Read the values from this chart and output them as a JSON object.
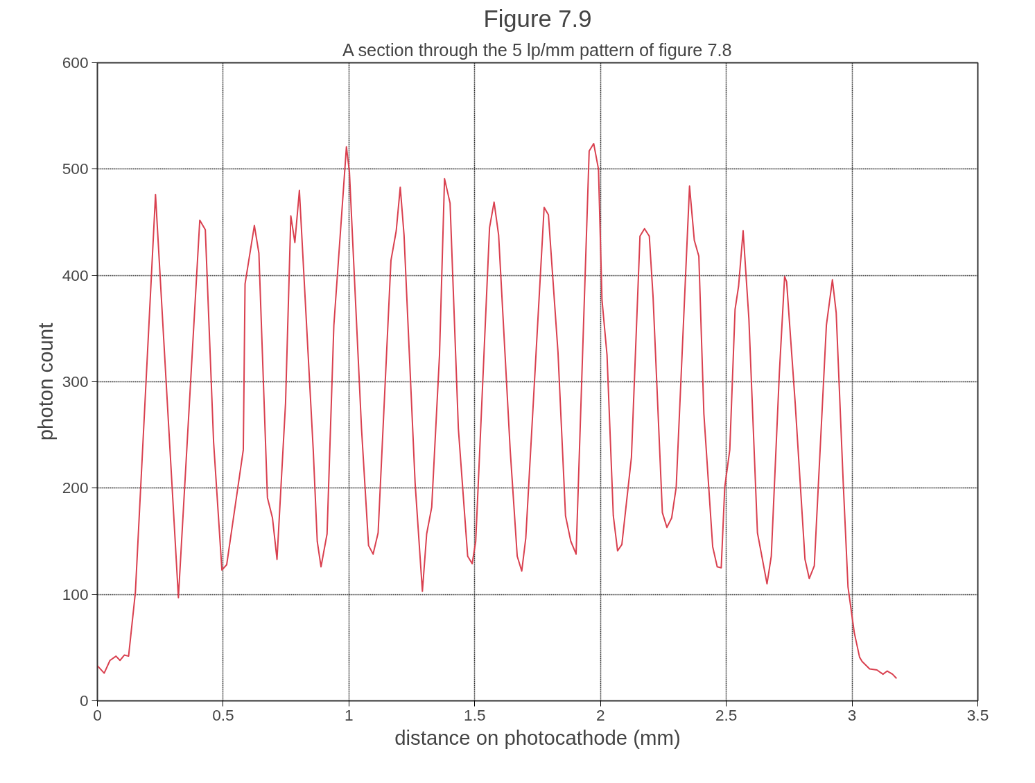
{
  "chart_data": {
    "type": "line",
    "title": "Figure 7.9",
    "subtitle": "A section through the 5 lp/mm pattern of figure 7.8",
    "xlabel": "distance on photocathode (mm)",
    "ylabel": "photon count",
    "xlim": [
      0,
      3.5
    ],
    "ylim": [
      0,
      600
    ],
    "xticks": [
      0,
      0.5,
      1,
      1.5,
      2,
      2.5,
      3,
      3.5
    ],
    "yticks": [
      0,
      100,
      200,
      300,
      400,
      500,
      600
    ],
    "grid": true,
    "marker": "none",
    "line_style": "solid",
    "series": [
      {
        "color": "#d9404f",
        "x": [
          0,
          0.027,
          0.05,
          0.074,
          0.09,
          0.107,
          0.124,
          0.151,
          0.231,
          0.322,
          0.407,
          0.429,
          0.462,
          0.495,
          0.514,
          0.58,
          0.587,
          0.624,
          0.642,
          0.676,
          0.696,
          0.714,
          0.748,
          0.769,
          0.785,
          0.803,
          0.858,
          0.874,
          0.889,
          0.913,
          0.94,
          0.99,
          1.002,
          1.05,
          1.078,
          1.096,
          1.116,
          1.167,
          1.188,
          1.204,
          1.219,
          1.263,
          1.292,
          1.309,
          1.329,
          1.36,
          1.38,
          1.402,
          1.435,
          1.472,
          1.49,
          1.504,
          1.559,
          1.577,
          1.595,
          1.641,
          1.669,
          1.687,
          1.703,
          1.776,
          1.793,
          1.831,
          1.861,
          1.882,
          1.903,
          1.955,
          1.973,
          1.992,
          2.006,
          2.026,
          2.051,
          2.068,
          2.085,
          2.123,
          2.157,
          2.175,
          2.194,
          2.209,
          2.246,
          2.264,
          2.283,
          2.301,
          2.354,
          2.373,
          2.391,
          2.411,
          2.446,
          2.464,
          2.48,
          2.494,
          2.514,
          2.535,
          2.549,
          2.567,
          2.59,
          2.624,
          2.662,
          2.679,
          2.711,
          2.732,
          2.74,
          2.774,
          2.813,
          2.83,
          2.85,
          2.898,
          2.922,
          2.937,
          2.965,
          2.984,
          3.009,
          3.03,
          3.04,
          3.07,
          3.099,
          3.123,
          3.14,
          3.161,
          3.177
        ],
        "values": [
          33,
          26,
          38,
          42,
          38,
          43,
          42,
          102,
          476,
          97,
          452,
          443,
          243,
          123,
          128,
          236,
          392,
          447,
          421,
          191,
          172,
          133,
          280,
          456,
          431,
          480,
          236,
          150,
          126,
          157,
          353,
          521,
          497,
          256,
          146,
          138,
          158,
          414,
          442,
          483,
          438,
          205,
          103,
          157,
          182,
          325,
          491,
          468,
          256,
          136,
          129,
          150,
          445,
          469,
          438,
          236,
          136,
          122,
          153,
          464,
          457,
          328,
          174,
          150,
          138,
          517,
          524,
          500,
          377,
          325,
          174,
          141,
          147,
          229,
          437,
          444,
          437,
          380,
          177,
          163,
          172,
          201,
          484,
          433,
          418,
          270,
          145,
          126,
          125,
          201,
          236,
          368,
          390,
          442,
          359,
          158,
          110,
          136,
          308,
          399,
          394,
          280,
          133,
          115,
          127,
          353,
          396,
          365,
          205,
          107,
          64,
          41,
          37,
          30,
          29,
          25,
          28,
          25,
          21
        ]
      }
    ]
  }
}
